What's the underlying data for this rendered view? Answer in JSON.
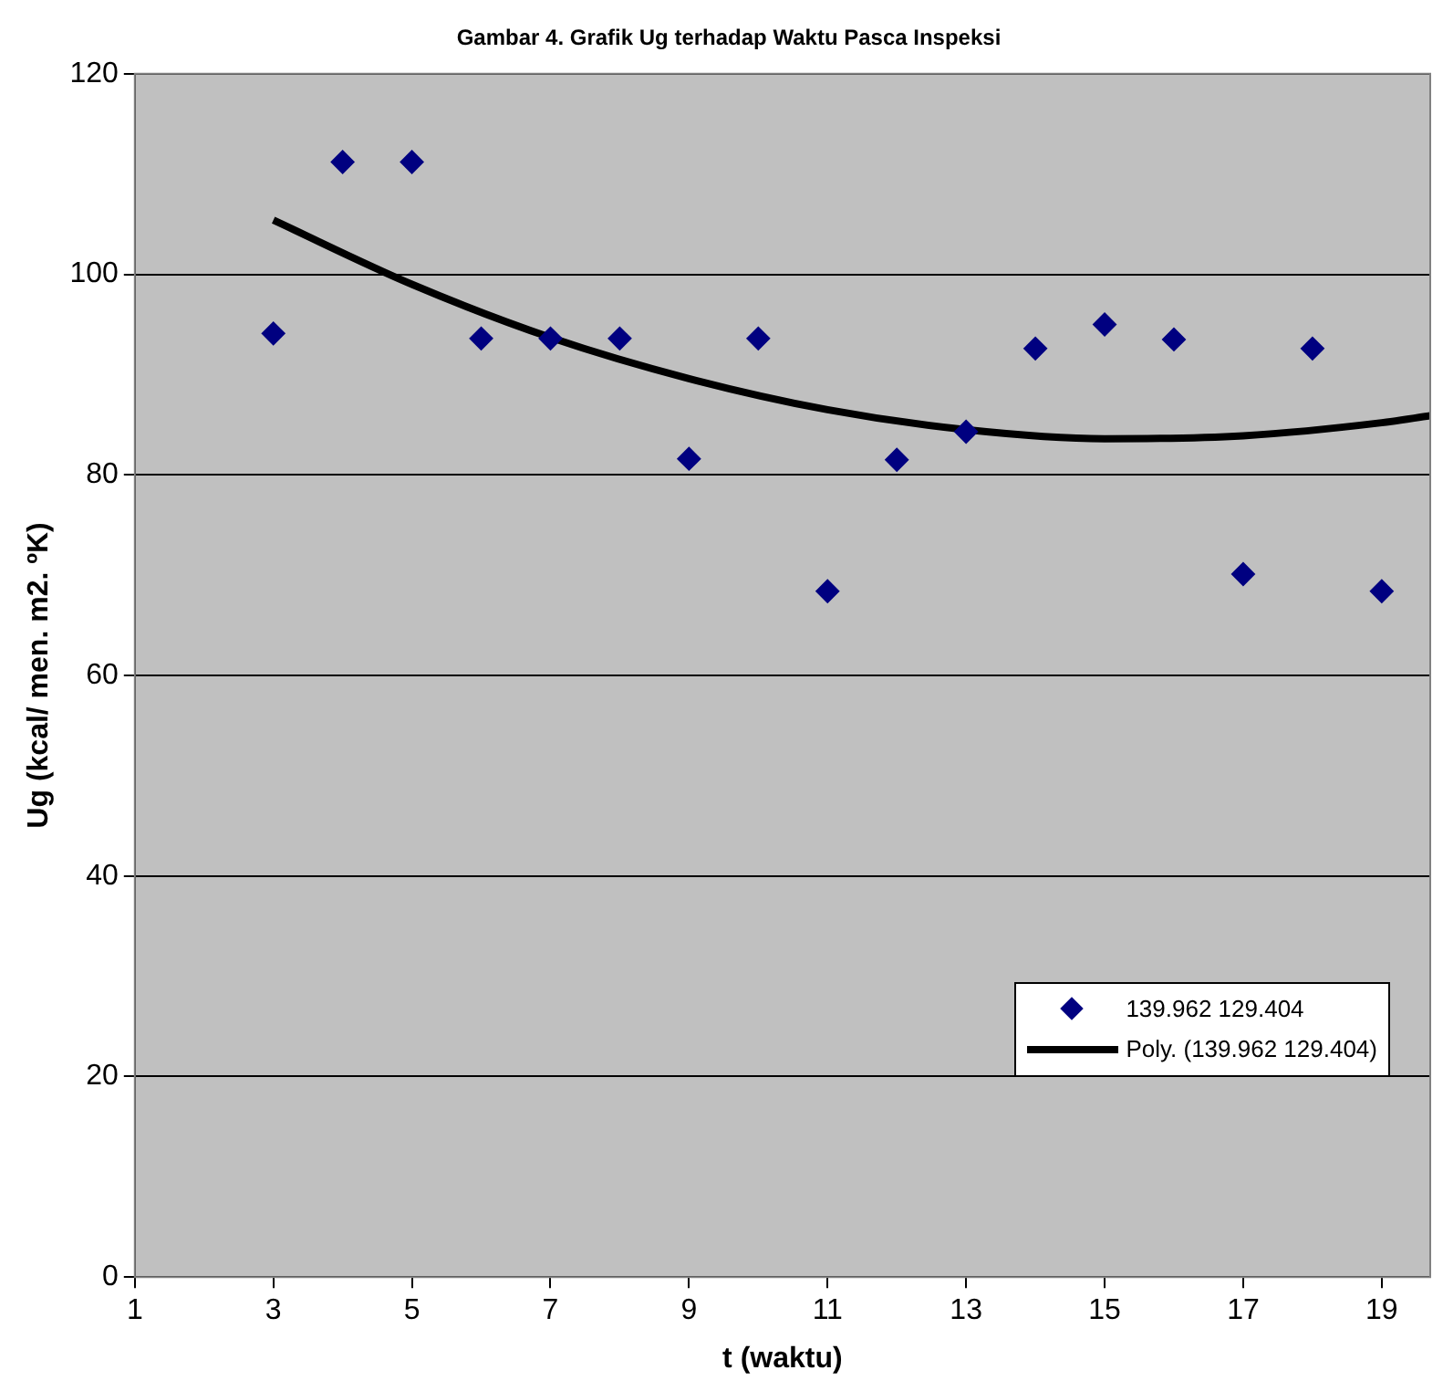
{
  "chart_data": {
    "type": "scatter",
    "title": "Gambar 4. Grafik Ug terhadap Waktu Pasca Inspeksi",
    "xlabel": "t (waktu)",
    "ylabel": "Ug (kcal/ men. m2. ºK)",
    "x": [
      3,
      4,
      5,
      6,
      7,
      8,
      9,
      10,
      11,
      12,
      13,
      14,
      15,
      16,
      17,
      18,
      19
    ],
    "xlim": [
      1,
      19.7
    ],
    "xticks": [
      1,
      3,
      5,
      7,
      9,
      11,
      13,
      15,
      17,
      19
    ],
    "ylim": [
      0,
      120
    ],
    "yticks": [
      0,
      20,
      40,
      60,
      80,
      100,
      120
    ],
    "grid": "y",
    "legend": "bottom right",
    "series": [
      {
        "name": "139.962 129.404",
        "type": "scatter",
        "color": "#000080",
        "marker": "diamond",
        "values": [
          94.1,
          111.2,
          111.2,
          93.6,
          93.6,
          93.6,
          81.6,
          93.6,
          68.4,
          81.5,
          84.3,
          92.6,
          95,
          93.5,
          70.1,
          92.6,
          68.4
        ]
      },
      {
        "name": "Poly. (139.962 129.404)",
        "type": "line",
        "color": "#000000",
        "marker": "none",
        "x": [
          3,
          5,
          7,
          9,
          11,
          13,
          15,
          17,
          19,
          19.7
        ],
        "values": [
          105.4,
          99.0,
          93.7,
          89.6,
          86.5,
          84.5,
          83.6,
          83.9,
          85.2,
          85.9
        ]
      }
    ]
  }
}
